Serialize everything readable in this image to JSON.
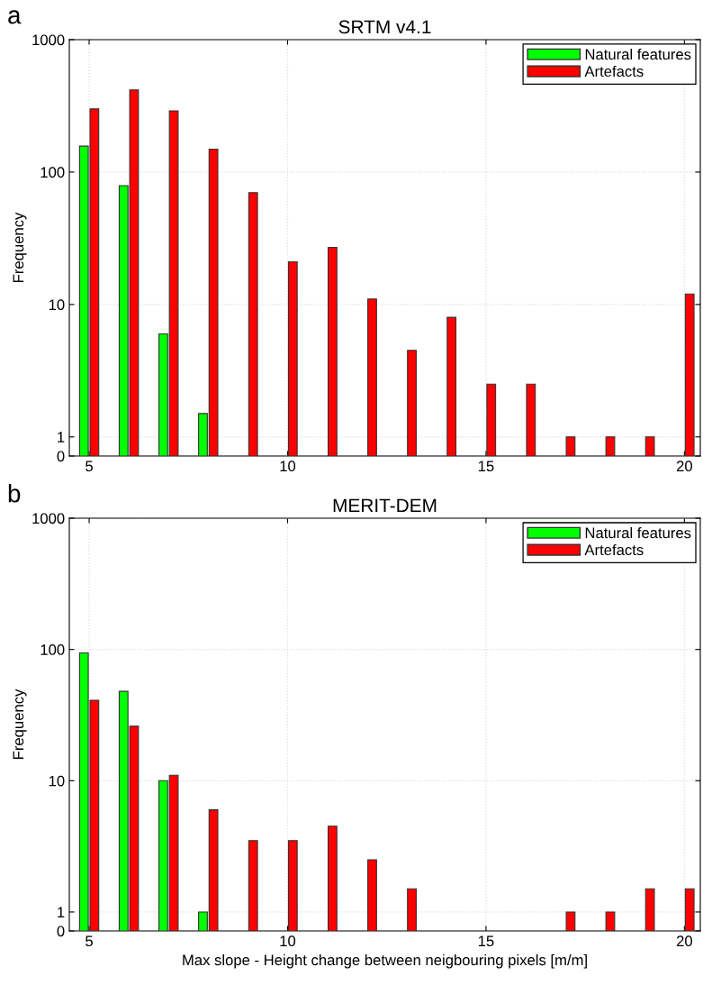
{
  "chart_data": [
    {
      "type": "bar",
      "title": "SRTM v4.1",
      "ylabel": "Frequency",
      "annotations": [
        "a"
      ],
      "x": [
        5,
        6,
        7,
        8,
        9,
        10,
        11,
        12,
        13,
        14,
        15,
        16,
        17,
        18,
        19,
        20
      ],
      "series": [
        {
          "name": "Natural features",
          "color": "#00ff00",
          "values": [
            157,
            79,
            6,
            1.5,
            null,
            null,
            null,
            null,
            null,
            null,
            null,
            null,
            null,
            null,
            null,
            null
          ]
        },
        {
          "name": "Artefacts",
          "color": "#ff0000",
          "values": [
            300,
            417,
            290,
            149,
            70,
            21,
            27,
            11,
            4.5,
            8,
            2.5,
            2.5,
            1,
            1,
            1,
            12
          ]
        }
      ],
      "log": "y",
      "xlim": [
        4.5,
        20.4
      ],
      "ylim": [
        0,
        1000
      ],
      "xticks": [
        5,
        10,
        15,
        20
      ],
      "yticks": [
        0,
        1,
        10,
        100,
        1000
      ],
      "grid": true,
      "legend": "top right"
    },
    {
      "type": "bar",
      "title": "MERIT-DEM",
      "xlabel": "Max slope - Height change between neigbouring pixels [m/m]",
      "ylabel": "Frequency",
      "annotations": [
        "b"
      ],
      "x": [
        5,
        6,
        7,
        8,
        9,
        10,
        11,
        12,
        13,
        14,
        15,
        16,
        17,
        18,
        19,
        20
      ],
      "series": [
        {
          "name": "Natural features",
          "color": "#00ff00",
          "values": [
            94,
            48,
            10,
            1,
            null,
            null,
            null,
            null,
            null,
            null,
            null,
            null,
            null,
            null,
            null,
            null
          ]
        },
        {
          "name": "Artefacts",
          "color": "#ff0000",
          "values": [
            41,
            26,
            11,
            6,
            3.5,
            3.5,
            4.5,
            2.5,
            1.5,
            null,
            null,
            null,
            1,
            1,
            1.5,
            1.5
          ]
        }
      ],
      "log": "y",
      "xlim": [
        4.5,
        20.4
      ],
      "ylim": [
        0,
        1000
      ],
      "xticks": [
        5,
        10,
        15,
        20
      ],
      "yticks": [
        0,
        1,
        10,
        100,
        1000
      ],
      "grid": true,
      "legend": "top right"
    }
  ]
}
